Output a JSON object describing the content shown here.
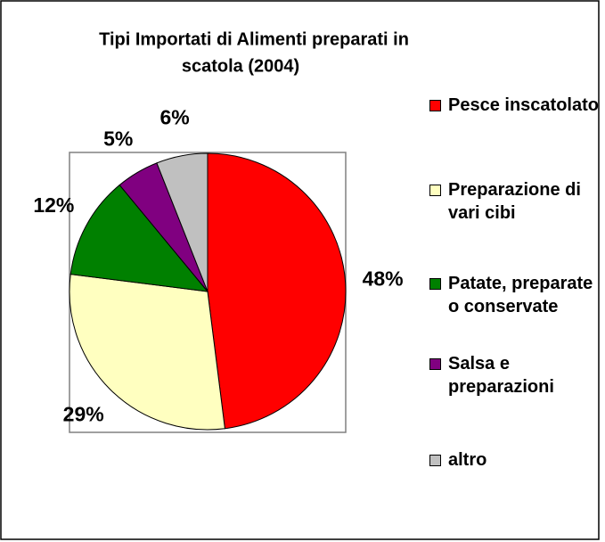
{
  "chart_data": {
    "type": "pie",
    "title": [
      "Tipi Importati di Alimenti preparati in",
      "scatola (2004)"
    ],
    "categories": [
      "Pesce inscatolato",
      "Preparazione di vari cibi",
      "Patate, preparate o conservate",
      "Salsa e preparazioni",
      "altro"
    ],
    "values": [
      48,
      29,
      12,
      5,
      6
    ],
    "value_labels": [
      "48%",
      "29%",
      "12%",
      "5%",
      "6%"
    ],
    "colors": [
      "#ff0000",
      "#ffffc0",
      "#008000",
      "#800080",
      "#c0c0c0"
    ],
    "legend": "right"
  }
}
